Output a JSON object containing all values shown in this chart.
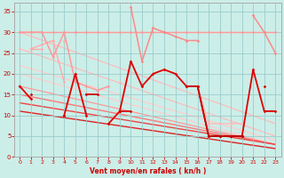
{
  "x": [
    0,
    1,
    2,
    3,
    4,
    5,
    6,
    7,
    8,
    9,
    10,
    11,
    12,
    13,
    14,
    15,
    16,
    17,
    18,
    19,
    20,
    21,
    22,
    23
  ],
  "series": [
    {
      "y": [
        30,
        30,
        30,
        30,
        30,
        30,
        30,
        30,
        30,
        30,
        30,
        30,
        30,
        30,
        30,
        30,
        30,
        30,
        30,
        30,
        30,
        30,
        30,
        30
      ],
      "color": "#ff9999",
      "lw": 1.0,
      "marker": "D",
      "ms": 1.8
    },
    {
      "y": [
        null,
        26,
        27,
        28,
        18,
        null,
        null,
        null,
        null,
        null,
        null,
        null,
        null,
        null,
        null,
        null,
        null,
        null,
        null,
        null,
        null,
        null,
        null,
        null
      ],
      "color": "#ffaaaa",
      "lw": 1.0,
      "marker": "D",
      "ms": 1.8
    },
    {
      "y": [
        26,
        null,
        null,
        null,
        null,
        null,
        null,
        null,
        null,
        18,
        null,
        null,
        null,
        null,
        null,
        null,
        null,
        null,
        null,
        null,
        null,
        null,
        null,
        null
      ],
      "color": "#ffbbbb",
      "lw": 1.0,
      "marker": "D",
      "ms": 1.8
    },
    {
      "y": [
        null,
        26,
        26,
        null,
        28,
        null,
        null,
        null,
        null,
        null,
        null,
        null,
        null,
        null,
        null,
        null,
        null,
        null,
        null,
        null,
        null,
        null,
        null,
        null
      ],
      "color": "#ffaaaa",
      "lw": 1.0,
      "marker": "D",
      "ms": 1.8
    },
    {
      "y": [
        30,
        30,
        30,
        24,
        30,
        18,
        17,
        16,
        17,
        null,
        null,
        null,
        null,
        null,
        null,
        null,
        null,
        null,
        null,
        null,
        null,
        null,
        null,
        null
      ],
      "color": "#ff9999",
      "lw": 1.1,
      "marker": "D",
      "ms": 1.8
    },
    {
      "y": [
        null,
        null,
        null,
        null,
        null,
        null,
        null,
        null,
        null,
        null,
        36,
        23,
        31,
        30,
        29,
        28,
        28,
        null,
        null,
        null,
        null,
        null,
        null,
        null
      ],
      "color": "#ff8888",
      "lw": 1.1,
      "marker": "D",
      "ms": 1.8
    },
    {
      "y": [
        null,
        null,
        null,
        null,
        null,
        null,
        null,
        null,
        null,
        null,
        null,
        null,
        null,
        null,
        null,
        null,
        17,
        8,
        8,
        8,
        8,
        null,
        null,
        null
      ],
      "color": "#ffbbbb",
      "lw": 1.0,
      "marker": "D",
      "ms": 1.8
    },
    {
      "comment": "pink x=21-23: 34,30,25",
      "y": [
        null,
        null,
        null,
        null,
        null,
        null,
        null,
        null,
        null,
        null,
        null,
        null,
        null,
        null,
        null,
        null,
        null,
        null,
        null,
        null,
        null,
        34,
        30,
        25
      ],
      "color": "#ff8888",
      "lw": 1.1,
      "marker": "D",
      "ms": 1.8
    },
    {
      "y": [
        17,
        14,
        null,
        null,
        10,
        20,
        10,
        null,
        8,
        11,
        23,
        17,
        20,
        21,
        20,
        17,
        17,
        5,
        5,
        5,
        5,
        21,
        11,
        11
      ],
      "color": "#dd0000",
      "lw": 1.3,
      "marker": "D",
      "ms": 1.8
    },
    {
      "y": [
        null,
        15,
        null,
        null,
        10,
        null,
        15,
        15,
        null,
        11,
        11,
        null,
        null,
        null,
        null,
        17,
        17,
        5,
        5,
        5,
        5,
        null,
        17,
        null
      ],
      "color": "#cc0000",
      "lw": 1.2,
      "marker": "D",
      "ms": 1.8
    },
    {
      "y": [
        null,
        null,
        null,
        null,
        null,
        null,
        null,
        null,
        null,
        null,
        null,
        null,
        null,
        null,
        null,
        null,
        null,
        5,
        5,
        5,
        5,
        null,
        null,
        null
      ],
      "color": "#bb0000",
      "lw": 1.1,
      "marker": "D",
      "ms": 1.8
    }
  ],
  "trend_lines": [
    {
      "x0": 0,
      "y0": 30,
      "x1": 23,
      "y1": 8,
      "color": "#ffbbbb",
      "lw": 0.9
    },
    {
      "x0": 0,
      "y0": 26,
      "x1": 23,
      "y1": 5,
      "color": "#ffbbbb",
      "lw": 0.9
    },
    {
      "x0": 0,
      "y0": 22,
      "x1": 23,
      "y1": 4,
      "color": "#ffcccc",
      "lw": 0.9
    },
    {
      "x0": 0,
      "y0": 20,
      "x1": 23,
      "y1": 3,
      "color": "#ffcccc",
      "lw": 0.9
    },
    {
      "x0": 0,
      "y0": 17,
      "x1": 23,
      "y1": 3,
      "color": "#ff9999",
      "lw": 0.9
    },
    {
      "x0": 0,
      "y0": 15,
      "x1": 23,
      "y1": 3,
      "color": "#ff7777",
      "lw": 1.0
    },
    {
      "x0": 0,
      "y0": 13,
      "x1": 23,
      "y1": 3,
      "color": "#ee4444",
      "lw": 1.0
    },
    {
      "x0": 0,
      "y0": 11,
      "x1": 23,
      "y1": 2,
      "color": "#dd2222",
      "lw": 1.0
    }
  ],
  "xlim": [
    -0.5,
    23.5
  ],
  "ylim": [
    0,
    37
  ],
  "yticks": [
    0,
    5,
    10,
    15,
    20,
    25,
    30,
    35
  ],
  "xticks": [
    0,
    1,
    2,
    3,
    4,
    5,
    6,
    7,
    8,
    9,
    10,
    11,
    12,
    13,
    14,
    15,
    16,
    17,
    18,
    19,
    20,
    21,
    22,
    23
  ],
  "xlabel": "Vent moyen/en rafales ( kn/h )",
  "bg_color": "#cceee8",
  "grid_color": "#99cccc",
  "tick_color": "#cc0000",
  "label_color": "#cc0000"
}
